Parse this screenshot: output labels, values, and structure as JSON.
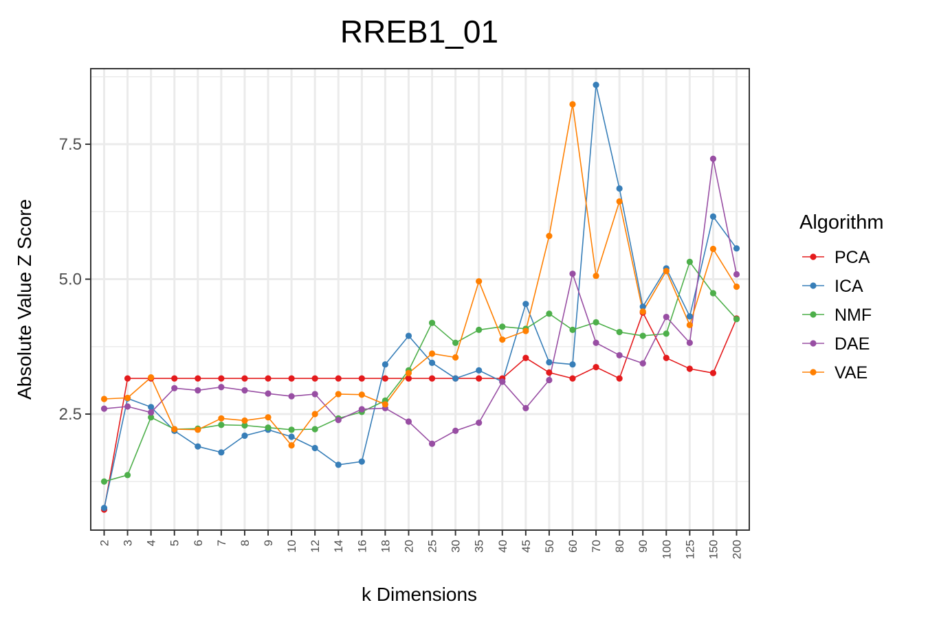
{
  "chart_data": {
    "type": "line",
    "title": "RREB1_01",
    "xlabel": "k Dimensions",
    "ylabel": "Absolute Value Z Score",
    "categories": [
      "2",
      "3",
      "4",
      "5",
      "6",
      "7",
      "8",
      "9",
      "10",
      "12",
      "14",
      "16",
      "18",
      "20",
      "25",
      "30",
      "35",
      "40",
      "45",
      "50",
      "60",
      "70",
      "80",
      "90",
      "100",
      "125",
      "150",
      "200"
    ],
    "ylim": [
      0.35,
      8.9
    ],
    "yticks": [
      2.5,
      5.0,
      7.5
    ],
    "ytick_labels": [
      "2.5",
      "5.0",
      "7.5"
    ],
    "grid": true,
    "legend": {
      "title": "Algorithm",
      "position": "right"
    },
    "series": [
      {
        "name": "PCA",
        "color": "#e41a1c",
        "values": [
          0.73,
          3.16,
          3.16,
          3.16,
          3.16,
          3.16,
          3.16,
          3.16,
          3.16,
          3.16,
          3.16,
          3.16,
          3.16,
          3.16,
          3.16,
          3.16,
          3.16,
          3.16,
          3.54,
          3.27,
          3.16,
          3.37,
          3.16,
          4.38,
          3.54,
          3.34,
          3.26,
          4.27
        ]
      },
      {
        "name": "ICA",
        "color": "#377eb8",
        "values": [
          0.76,
          2.79,
          2.63,
          2.19,
          1.9,
          1.79,
          2.1,
          2.21,
          2.08,
          1.87,
          1.56,
          1.62,
          3.42,
          3.95,
          3.45,
          3.16,
          3.31,
          3.1,
          4.54,
          3.46,
          3.42,
          8.6,
          6.68,
          4.49,
          5.2,
          4.31,
          6.16,
          5.57
        ]
      },
      {
        "name": "NMF",
        "color": "#4daf4a",
        "values": [
          1.25,
          1.37,
          2.44,
          2.22,
          2.23,
          2.3,
          2.29,
          2.25,
          2.21,
          2.22,
          2.42,
          2.54,
          2.75,
          3.31,
          4.19,
          3.82,
          4.06,
          4.12,
          4.08,
          4.36,
          4.06,
          4.2,
          4.02,
          3.95,
          3.99,
          5.32,
          4.74,
          4.26
        ]
      },
      {
        "name": "DAE",
        "color": "#984ea3",
        "values": [
          2.6,
          2.64,
          2.53,
          2.98,
          2.94,
          3.0,
          2.94,
          2.88,
          2.83,
          2.87,
          2.39,
          2.59,
          2.61,
          2.36,
          1.95,
          2.19,
          2.34,
          3.1,
          2.61,
          3.13,
          5.1,
          3.82,
          3.59,
          3.44,
          4.3,
          3.82,
          7.23,
          5.09
        ]
      },
      {
        "name": "VAE",
        "color": "#ff7f00",
        "values": [
          2.78,
          2.8,
          3.18,
          2.22,
          2.21,
          2.42,
          2.38,
          2.44,
          1.92,
          2.5,
          2.87,
          2.86,
          2.68,
          3.26,
          3.62,
          3.55,
          4.96,
          3.88,
          4.04,
          5.8,
          8.24,
          5.06,
          6.44,
          4.4,
          5.15,
          4.15,
          5.56,
          4.86
        ]
      }
    ]
  }
}
